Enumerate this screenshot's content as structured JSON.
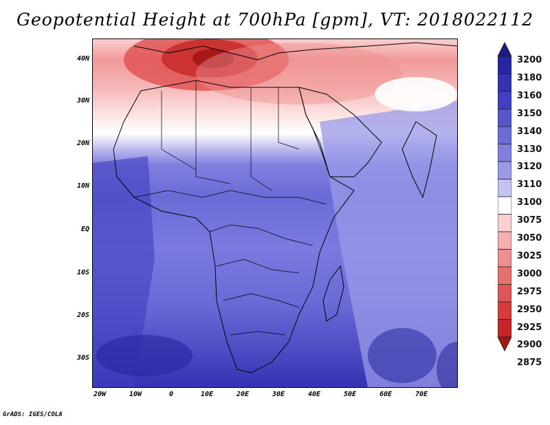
{
  "title": "Geopotential Height at 700hPa [gpm], VT: 2018022112",
  "footer": "GrADS: IGES/COLA",
  "axes": {
    "lat_labels": [
      "40N",
      "30N",
      "20N",
      "10N",
      "EQ",
      "10S",
      "20S",
      "30S"
    ],
    "lon_labels": [
      "20W",
      "10W",
      "0",
      "10E",
      "20E",
      "30E",
      "40E",
      "50E",
      "60E",
      "70E"
    ]
  },
  "colorbar": {
    "levels": [
      "3200",
      "3180",
      "3160",
      "3150",
      "3140",
      "3130",
      "3120",
      "3110",
      "3100",
      "3075",
      "3050",
      "3025",
      "3000",
      "2975",
      "2950",
      "2925",
      "2900",
      "2875"
    ],
    "colors": [
      "#1a1a8c",
      "#2626a0",
      "#3333b4",
      "#4040c0",
      "#5555cc",
      "#6b6bd8",
      "#8080e0",
      "#9a9ae8",
      "#c4c4f2",
      "#ffffff",
      "#fbd0d0",
      "#f6b0b0",
      "#ef9090",
      "#e77070",
      "#e05555",
      "#d63c3c",
      "#c42727",
      "#a31616"
    ]
  }
}
